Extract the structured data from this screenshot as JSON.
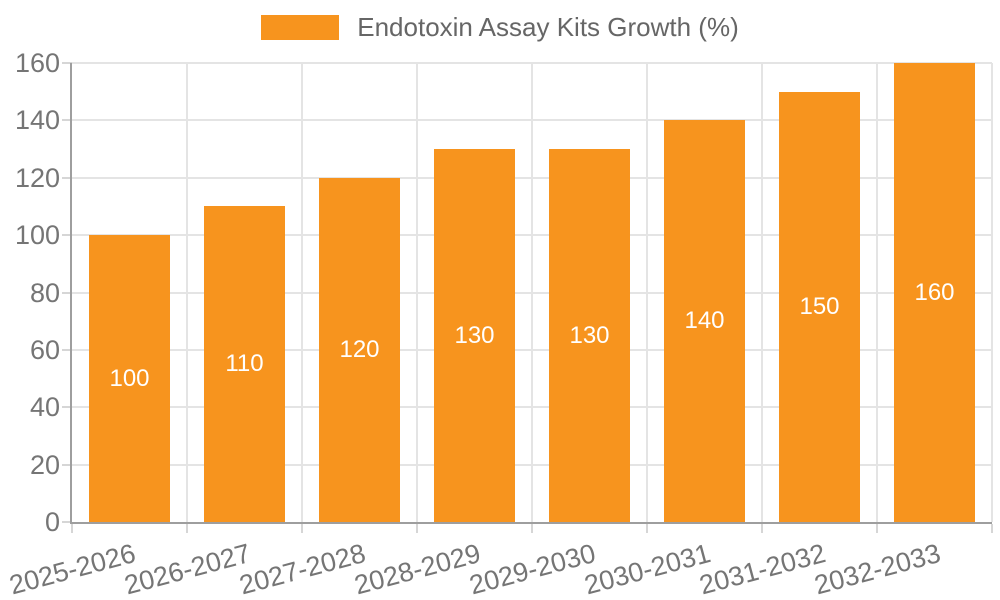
{
  "chart_data": {
    "type": "bar",
    "title": "Endotoxin Assay Kits Growth (%)",
    "legend": {
      "label": "Endotoxin Assay Kits Growth (%)",
      "position": "top"
    },
    "categories": [
      "2025-2026",
      "2026-2027",
      "2027-2028",
      "2028-2029",
      "2029-2030",
      "2030-2031",
      "2031-2032",
      "2032-2033"
    ],
    "series": [
      {
        "name": "Endotoxin Assay Kits Growth (%)",
        "values": [
          100,
          110,
          120,
          130,
          130,
          140,
          150,
          160
        ]
      }
    ],
    "bar_value_labels": [
      "100",
      "110",
      "120",
      "130",
      "130",
      "140",
      "150",
      "160"
    ],
    "xlabel": "",
    "ylabel": "",
    "ylim": [
      0,
      160
    ],
    "ytick_step": 20,
    "ytick_labels": [
      "0",
      "20",
      "40",
      "60",
      "80",
      "100",
      "120",
      "140",
      "160"
    ],
    "x_tick_rotation_deg": -15,
    "grid": true,
    "colors": {
      "bar": "#F7941E",
      "bar_value_label": "#FFFFFF",
      "tick_label": "#757575",
      "legend_text": "#666666",
      "gridline": "#E4E4E4",
      "tick_mark": "#D6D6D6",
      "axis_line": "#9E9E9E",
      "background": "#FFFFFF"
    }
  }
}
